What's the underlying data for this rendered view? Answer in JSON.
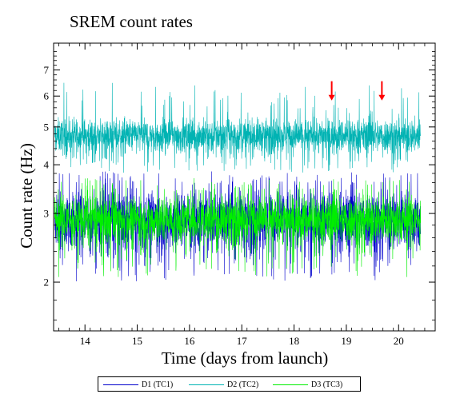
{
  "chart_data": {
    "type": "line",
    "title": "SREM count rates",
    "xlabel": "Time (days from launch)",
    "ylabel": "Count rate (Hz)",
    "xlim": [
      13.4,
      20.7
    ],
    "ylim": [
      1.5,
      8.2
    ],
    "yscale": "log",
    "x_ticks": [
      14,
      15,
      16,
      17,
      18,
      19,
      20
    ],
    "y_ticks": [
      2,
      3,
      4,
      5,
      6,
      7
    ],
    "grid": false,
    "legend_position": "bottom",
    "x_range_of_data": [
      13.42,
      20.42
    ],
    "series": [
      {
        "name": "D1 (TC1)",
        "color": "#0000cc",
        "mean": 2.9,
        "low": 2.35,
        "high": 3.55,
        "min": 2.0,
        "max": 3.85
      },
      {
        "name": "D2 (TC2)",
        "color": "#00b3b3",
        "mean": 4.75,
        "low": 4.2,
        "high": 5.3,
        "min": 3.8,
        "max": 6.5
      },
      {
        "name": "D3 (TC3)",
        "color": "#00ee00",
        "mean": 2.9,
        "low": 2.45,
        "high": 3.4,
        "min": 2.05,
        "max": 3.7
      }
    ],
    "annotations": [
      {
        "type": "arrow",
        "x": 18.72,
        "y_from": 6.55,
        "y_to": 5.9,
        "color": "#ff0000"
      },
      {
        "type": "arrow",
        "x": 19.68,
        "y_from": 6.55,
        "y_to": 5.9,
        "color": "#ff0000"
      }
    ]
  }
}
